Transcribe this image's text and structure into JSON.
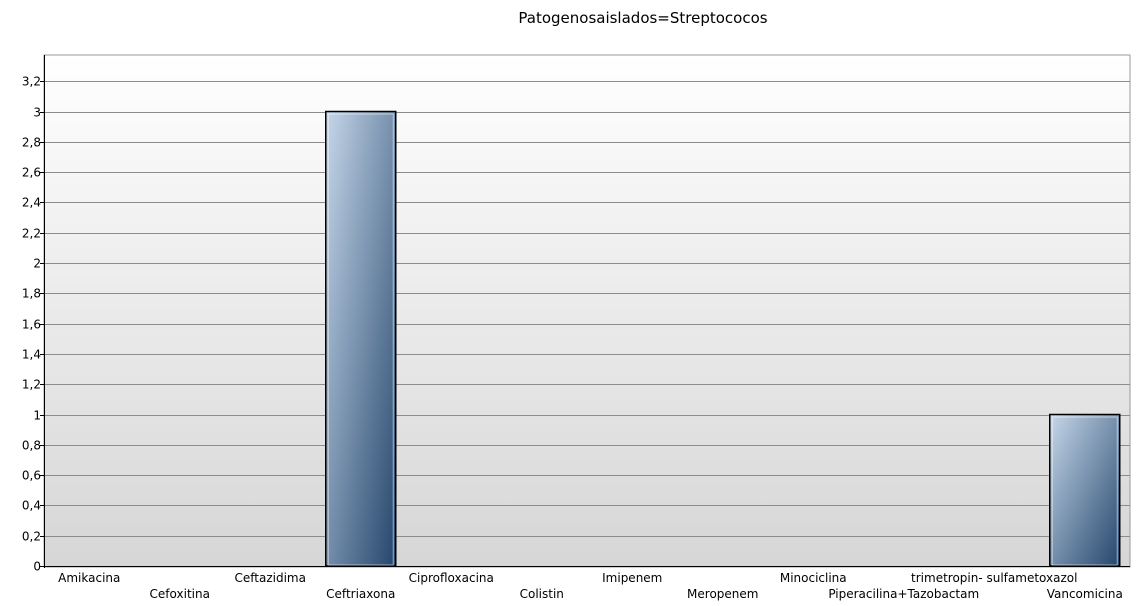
{
  "chart_data": {
    "type": "bar",
    "title": "Patogenosaislados=Streptococos",
    "xlabel": "",
    "ylabel": "",
    "ylim": [
      0,
      3.3
    ],
    "yticks": [
      "0",
      "0,2",
      "0,4",
      "0,6",
      "0,8",
      "1",
      "1,2",
      "1,4",
      "1,6",
      "1,8",
      "2",
      "2,2",
      "2,4",
      "2,6",
      "2,8",
      "3",
      "3,2"
    ],
    "categories": [
      "Amikacina",
      "Cefoxitina",
      "Ceftazidima",
      "Ceftriaxona",
      "Ciprofloxacina",
      "Colistin",
      "Imipenem",
      "Meropenem",
      "Minociclina",
      "Piperacilina+Tazobactam",
      "trimetropin- sulfametoxazol",
      "Vancomicina"
    ],
    "values": [
      0,
      0,
      0,
      3,
      0,
      0,
      0,
      0,
      0,
      0,
      0,
      1
    ],
    "grid": true,
    "legend": "none",
    "colors": {
      "bar_light": "#c6d7ea",
      "bar_dark": "#24466c",
      "bar_border": "#000000",
      "plot_top": "#ffffff",
      "plot_bottom": "#d6d6d6",
      "grid": "#8c8c8c"
    }
  }
}
